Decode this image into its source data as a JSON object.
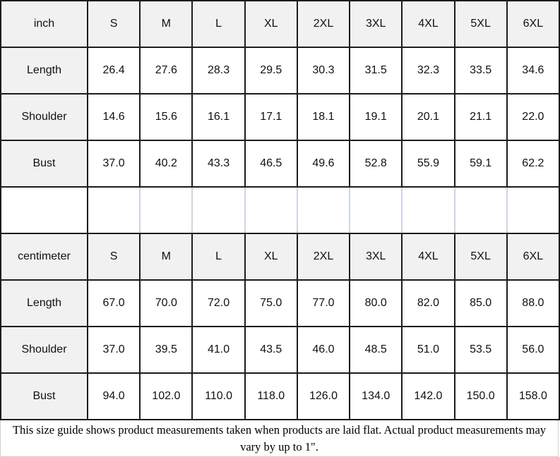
{
  "colors": {
    "header_cell_bg": "#f1f1f1",
    "table_border": "#1c1c1c",
    "spacer_inner_border": "#ccd5e6",
    "text": "#111111"
  },
  "chart_data": [
    {
      "type": "table",
      "unit": "inch",
      "sizes": [
        "S",
        "M",
        "L",
        "XL",
        "2XL",
        "3XL",
        "4XL",
        "5XL",
        "6XL"
      ],
      "rows": [
        {
          "label": "Length",
          "values": [
            "26.4",
            "27.6",
            "28.3",
            "29.5",
            "30.3",
            "31.5",
            "32.3",
            "33.5",
            "34.6"
          ]
        },
        {
          "label": "Shoulder",
          "values": [
            "14.6",
            "15.6",
            "16.1",
            "17.1",
            "18.1",
            "19.1",
            "20.1",
            "21.1",
            "22.0"
          ]
        },
        {
          "label": "Bust",
          "values": [
            "37.0",
            "40.2",
            "43.3",
            "46.5",
            "49.6",
            "52.8",
            "55.9",
            "59.1",
            "62.2"
          ]
        }
      ]
    },
    {
      "type": "table",
      "unit": "centimeter",
      "sizes": [
        "S",
        "M",
        "L",
        "XL",
        "2XL",
        "3XL",
        "4XL",
        "5XL",
        "6XL"
      ],
      "rows": [
        {
          "label": "Length",
          "values": [
            "67.0",
            "70.0",
            "72.0",
            "75.0",
            "77.0",
            "80.0",
            "82.0",
            "85.0",
            "88.0"
          ]
        },
        {
          "label": "Shoulder",
          "values": [
            "37.0",
            "39.5",
            "41.0",
            "43.5",
            "46.0",
            "48.5",
            "51.0",
            "53.5",
            "56.0"
          ]
        },
        {
          "label": "Bust",
          "values": [
            "94.0",
            "102.0",
            "110.0",
            "118.0",
            "126.0",
            "134.0",
            "142.0",
            "150.0",
            "158.0"
          ]
        }
      ]
    }
  ],
  "footer": {
    "note": "This size guide shows product measurements taken when products are laid flat. Actual product measurements may vary by up to 1\"."
  }
}
